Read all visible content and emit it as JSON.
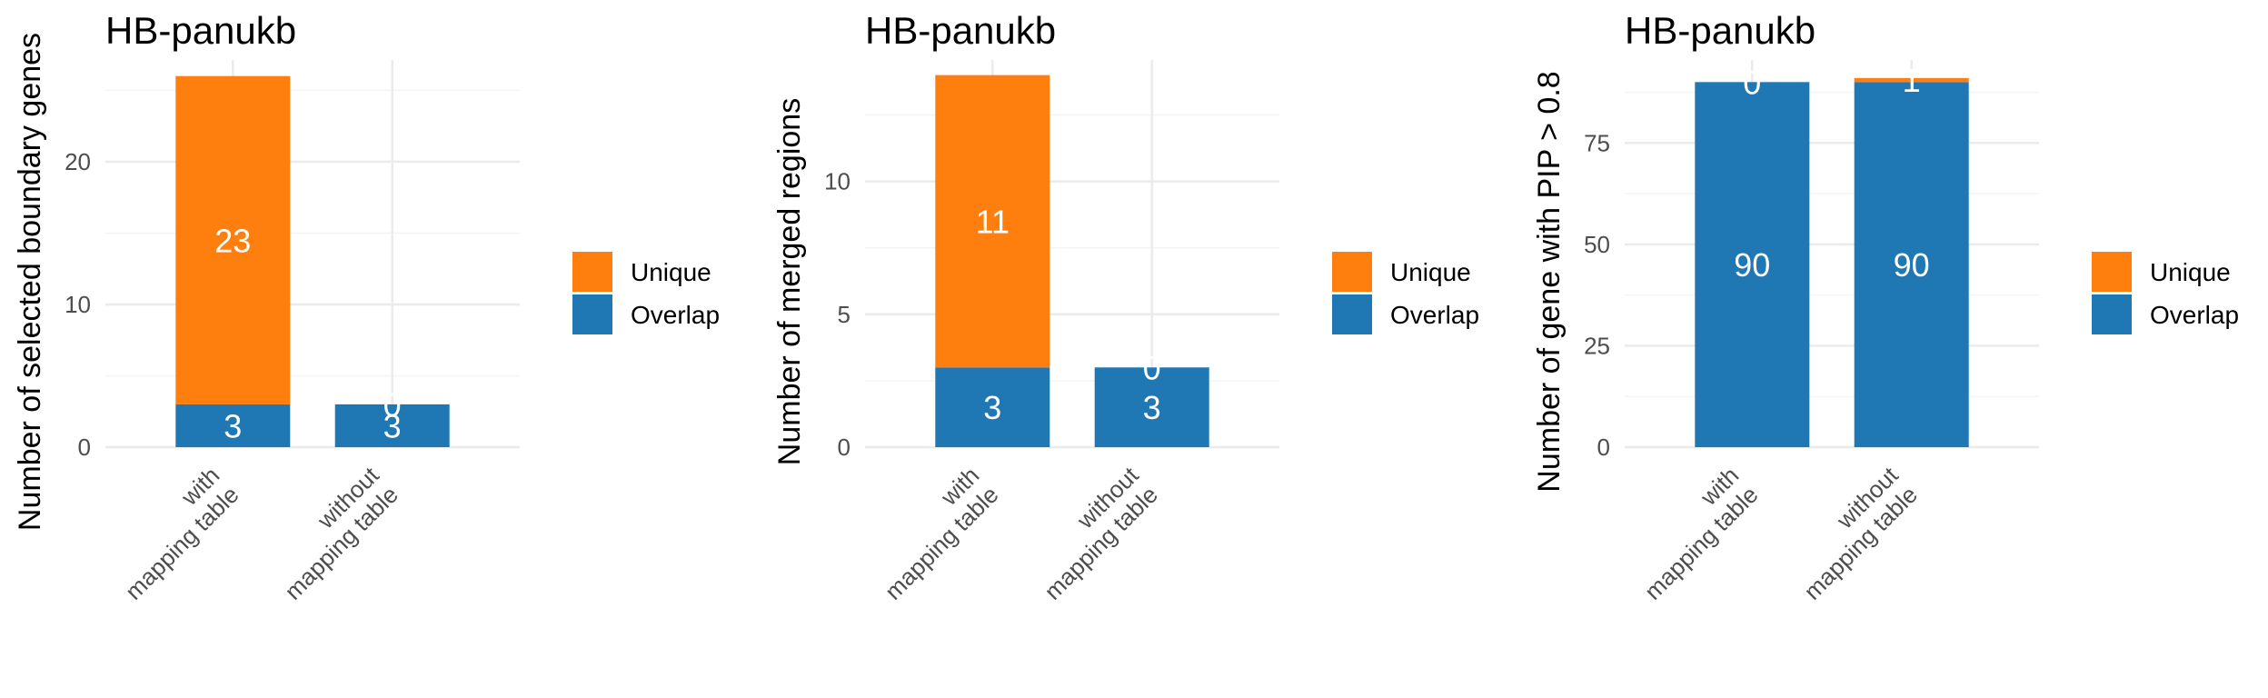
{
  "colors": {
    "unique": "#ff7f0e",
    "overlap": "#1f77b4",
    "grid": "#ebebeb",
    "tick_text": "#4d4d4d",
    "label_text": "#ffffff"
  },
  "legend": {
    "items": [
      {
        "name": "Unique",
        "color": "#ff7f0e"
      },
      {
        "name": "Overlap",
        "color": "#1f77b4"
      }
    ]
  },
  "chart_data": [
    {
      "type": "bar",
      "stacked": true,
      "title": "HB-panukb",
      "xlabel": "",
      "ylabel": "Number of selected boundary genes",
      "categories": [
        "with\nmapping table",
        "without\nmapping table"
      ],
      "series": [
        {
          "name": "Overlap",
          "values": [
            3,
            3
          ]
        },
        {
          "name": "Unique",
          "values": [
            23,
            0
          ]
        }
      ],
      "ylim": [
        0,
        27
      ],
      "yticks": [
        0,
        10,
        20
      ],
      "grid": true,
      "legend": "right"
    },
    {
      "type": "bar",
      "stacked": true,
      "title": "HB-panukb",
      "xlabel": "",
      "ylabel": "Number of merged regions",
      "categories": [
        "with\nmapping table",
        "without\nmapping table"
      ],
      "series": [
        {
          "name": "Overlap",
          "values": [
            3,
            3
          ]
        },
        {
          "name": "Unique",
          "values": [
            11,
            0
          ]
        }
      ],
      "ylim": [
        0,
        14.5
      ],
      "yticks": [
        0,
        5,
        10
      ],
      "grid": true,
      "legend": "right"
    },
    {
      "type": "bar",
      "stacked": true,
      "title": "HB-panukb",
      "xlabel": "",
      "ylabel": "Number of gene with PIP > 0.8",
      "categories": [
        "with\nmapping table",
        "without\nmapping table"
      ],
      "series": [
        {
          "name": "Overlap",
          "values": [
            90,
            90
          ]
        },
        {
          "name": "Unique",
          "values": [
            0,
            1
          ]
        }
      ],
      "ylim": [
        0,
        95
      ],
      "yticks": [
        0,
        25,
        50,
        75
      ],
      "grid": true,
      "legend": "right"
    }
  ]
}
